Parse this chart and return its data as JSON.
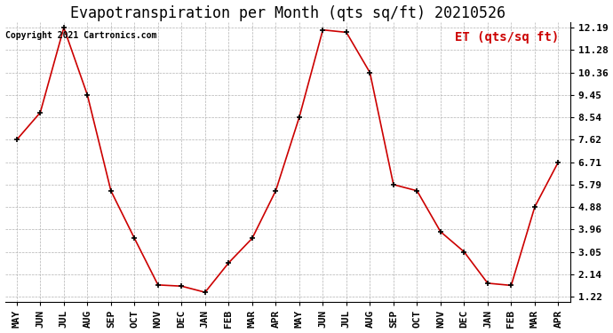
{
  "title": "Evapotranspiration per Month (qts sq/ft) 20210526",
  "ylabel": "ET (qts/sq ft)",
  "copyright": "Copyright 2021 Cartronics.com",
  "months": [
    "MAY",
    "JUN",
    "JUL",
    "AUG",
    "SEP",
    "OCT",
    "NOV",
    "DEC",
    "JAN",
    "FEB",
    "MAR",
    "APR",
    "MAY",
    "JUN",
    "JUL",
    "AUG",
    "SEP",
    "OCT",
    "NOV",
    "DEC",
    "JAN",
    "FEB",
    "MAR",
    "APR"
  ],
  "values": [
    7.62,
    8.73,
    12.19,
    9.45,
    5.54,
    3.6,
    1.7,
    1.65,
    1.4,
    2.6,
    3.6,
    5.54,
    8.54,
    12.1,
    12.0,
    10.36,
    5.79,
    5.54,
    3.87,
    3.05,
    1.77,
    1.68,
    4.88,
    6.71
  ],
  "line_color": "#cc0000",
  "marker_color": "#000000",
  "background_color": "#ffffff",
  "grid_color": "#aaaaaa",
  "title_fontsize": 12,
  "copyright_fontsize": 7,
  "ylabel_fontsize": 10,
  "tick_fontsize": 8,
  "ytick_values": [
    1.22,
    2.14,
    3.05,
    3.96,
    4.88,
    5.79,
    6.71,
    7.62,
    8.54,
    9.45,
    10.36,
    11.28,
    12.19
  ],
  "ylim_min": 1.22,
  "ylim_max": 12.19
}
